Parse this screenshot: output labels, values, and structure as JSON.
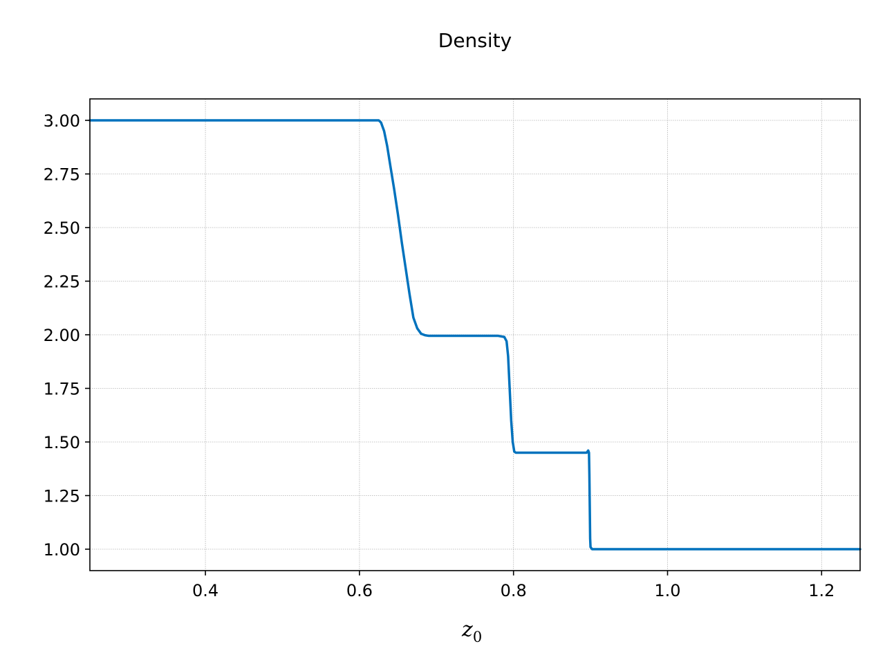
{
  "chart_data": {
    "type": "line",
    "title": "Density",
    "xlabel": {
      "base": "z",
      "subscript": "0"
    },
    "ylabel": "",
    "xlim": [
      0.25,
      1.25
    ],
    "ylim": [
      0.9,
      3.1
    ],
    "xticks": [
      0.4,
      0.6,
      0.8,
      1.0,
      1.2
    ],
    "xtick_labels": [
      "0.4",
      "0.6",
      "0.8",
      "1.0",
      "1.2"
    ],
    "yticks": [
      1.0,
      1.25,
      1.5,
      1.75,
      2.0,
      2.25,
      2.5,
      2.75,
      3.0
    ],
    "ytick_labels": [
      "1.00",
      "1.25",
      "1.50",
      "1.75",
      "2.00",
      "2.25",
      "2.50",
      "2.75",
      "3.00"
    ],
    "grid": true,
    "series": [
      {
        "color": "#0072bd",
        "x": [
          0.25,
          0.62,
          0.625,
          0.628,
          0.632,
          0.636,
          0.64,
          0.645,
          0.65,
          0.655,
          0.66,
          0.665,
          0.67,
          0.675,
          0.68,
          0.685,
          0.69,
          0.695,
          0.7,
          0.72,
          0.75,
          0.78,
          0.788,
          0.791,
          0.793,
          0.795,
          0.797,
          0.799,
          0.801,
          0.803,
          0.81,
          0.85,
          0.895,
          0.896,
          0.897,
          0.898,
          0.8985,
          0.899,
          0.8995,
          0.9,
          0.902,
          0.91,
          0.95,
          1.0,
          1.1,
          1.25
        ],
        "y": [
          3.0,
          3.0,
          3.0,
          2.99,
          2.95,
          2.88,
          2.79,
          2.68,
          2.56,
          2.43,
          2.31,
          2.19,
          2.08,
          2.03,
          2.005,
          1.998,
          1.995,
          1.995,
          1.995,
          1.995,
          1.995,
          1.995,
          1.99,
          1.97,
          1.9,
          1.75,
          1.6,
          1.5,
          1.455,
          1.45,
          1.45,
          1.45,
          1.45,
          1.455,
          1.46,
          1.45,
          1.35,
          1.2,
          1.05,
          1.01,
          1.0,
          1.0,
          1.0,
          1.0,
          1.0,
          1.0
        ]
      }
    ]
  }
}
